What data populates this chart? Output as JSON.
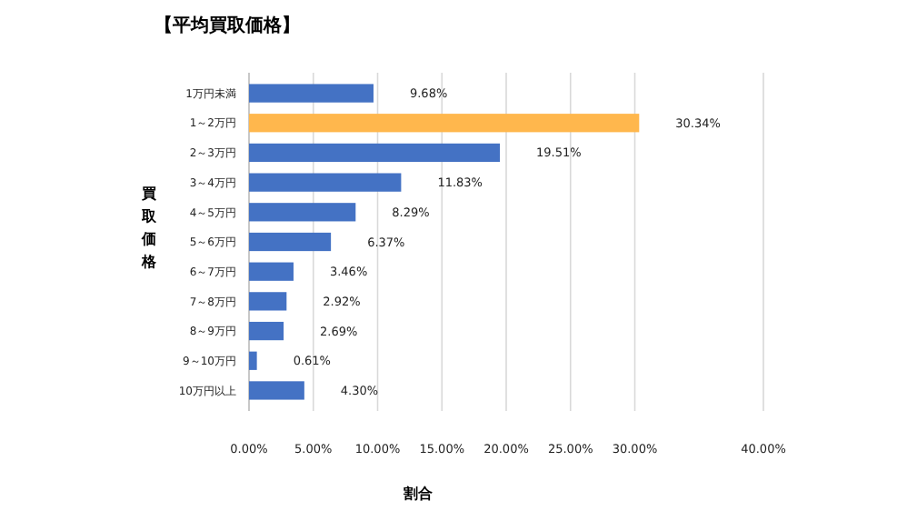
{
  "chart_data": {
    "type": "bar",
    "orientation": "horizontal",
    "title": "【平均買取価格】",
    "xlabel": "割合",
    "ylabel": "買取価格",
    "categories": [
      "1万円未満",
      "1～2万円",
      "2～3万円",
      "3～4万円",
      "4～5万円",
      "5～6万円",
      "6～7万円",
      "7～8万円",
      "8～9万円",
      "9～10万円",
      "10万円以上"
    ],
    "values": [
      9.68,
      30.34,
      19.51,
      11.83,
      8.29,
      6.37,
      3.46,
      2.92,
      2.69,
      0.61,
      4.3
    ],
    "colors": [
      "#4472c4",
      "#ffb74d",
      "#4472c4",
      "#4472c4",
      "#4472c4",
      "#4472c4",
      "#4472c4",
      "#4472c4",
      "#4472c4",
      "#4472c4",
      "#4472c4"
    ],
    "value_labels": [
      "9.68%",
      "30.34%",
      "19.51%",
      "11.83%",
      "8.29%",
      "6.37%",
      "3.46%",
      "2.92%",
      "2.69%",
      "0.61%",
      "4.30%"
    ],
    "xlim": [
      0,
      40
    ],
    "xticks": [
      {
        "value": 0,
        "label": "0.00%"
      },
      {
        "value": 5,
        "label": "5.00%"
      },
      {
        "value": 10,
        "label": "10.00%"
      },
      {
        "value": 15,
        "label": "15.00%"
      },
      {
        "value": 20,
        "label": "20.00%"
      },
      {
        "value": 25,
        "label": "25.00%"
      },
      {
        "value": 30,
        "label": "30.00%"
      },
      {
        "value": 40,
        "label": "40.00%"
      }
    ],
    "grid": "x"
  }
}
